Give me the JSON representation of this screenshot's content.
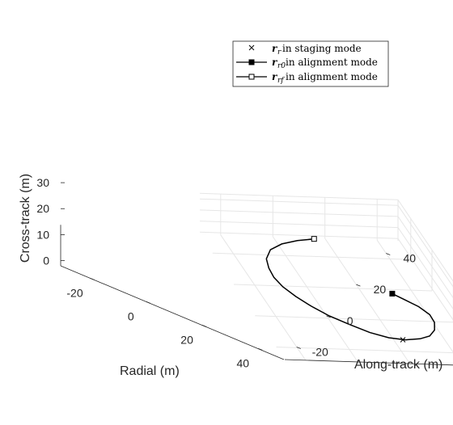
{
  "chart_data": {
    "type": "line3d",
    "xlabel": "Radial (m)",
    "ylabel": "Along-track (m)",
    "zlabel": "Cross-track (m)",
    "x_ticks": [
      -20,
      0,
      20,
      40
    ],
    "y_ticks": [
      -20,
      0,
      20,
      40
    ],
    "z_ticks": [
      0,
      10,
      20,
      30
    ],
    "grid": true,
    "legend_position": "top-right",
    "legend": [
      {
        "symbol": "r",
        "subscript": "r",
        "text": " in staging mode",
        "marker": "cross"
      },
      {
        "symbol": "r",
        "subscript": "r0",
        "text": " in alignment mode",
        "marker": "filled-square"
      },
      {
        "symbol": "r",
        "subscript": "rf",
        "text": " in alignment mode",
        "marker": "open-square"
      }
    ],
    "series": [
      {
        "marker": "line",
        "x": [
          -30,
          -28.5,
          -26,
          -22,
          -16,
          -10,
          -4,
          2,
          8,
          14,
          20,
          25,
          30,
          33,
          34,
          33,
          31,
          27,
          22,
          17,
          12,
          8,
          4.1
        ],
        "y": [
          15,
          8,
          1,
          -5,
          -9,
          -10.5,
          -11,
          -10,
          -7.5,
          -4,
          0.5,
          6,
          12,
          18,
          24,
          30,
          34.5,
          38,
          40,
          40.2,
          38,
          34.5,
          31.1
        ],
        "z": [
          0,
          0,
          0,
          0,
          0,
          0,
          0,
          0,
          0,
          0,
          0,
          0,
          0,
          0,
          0,
          0,
          0,
          0,
          0,
          0,
          0,
          0,
          0
        ]
      }
    ],
    "points": [
      {
        "name": "r_r0",
        "marker": "filled-square",
        "x": 4.1,
        "y": 31.1,
        "z": 0
      },
      {
        "name": "r_rf",
        "marker": "open-square",
        "x": -30,
        "y": 15,
        "z": 0
      },
      {
        "name": "r_r",
        "marker": "cross",
        "x": 34,
        "y": 23,
        "z": 0
      }
    ]
  }
}
